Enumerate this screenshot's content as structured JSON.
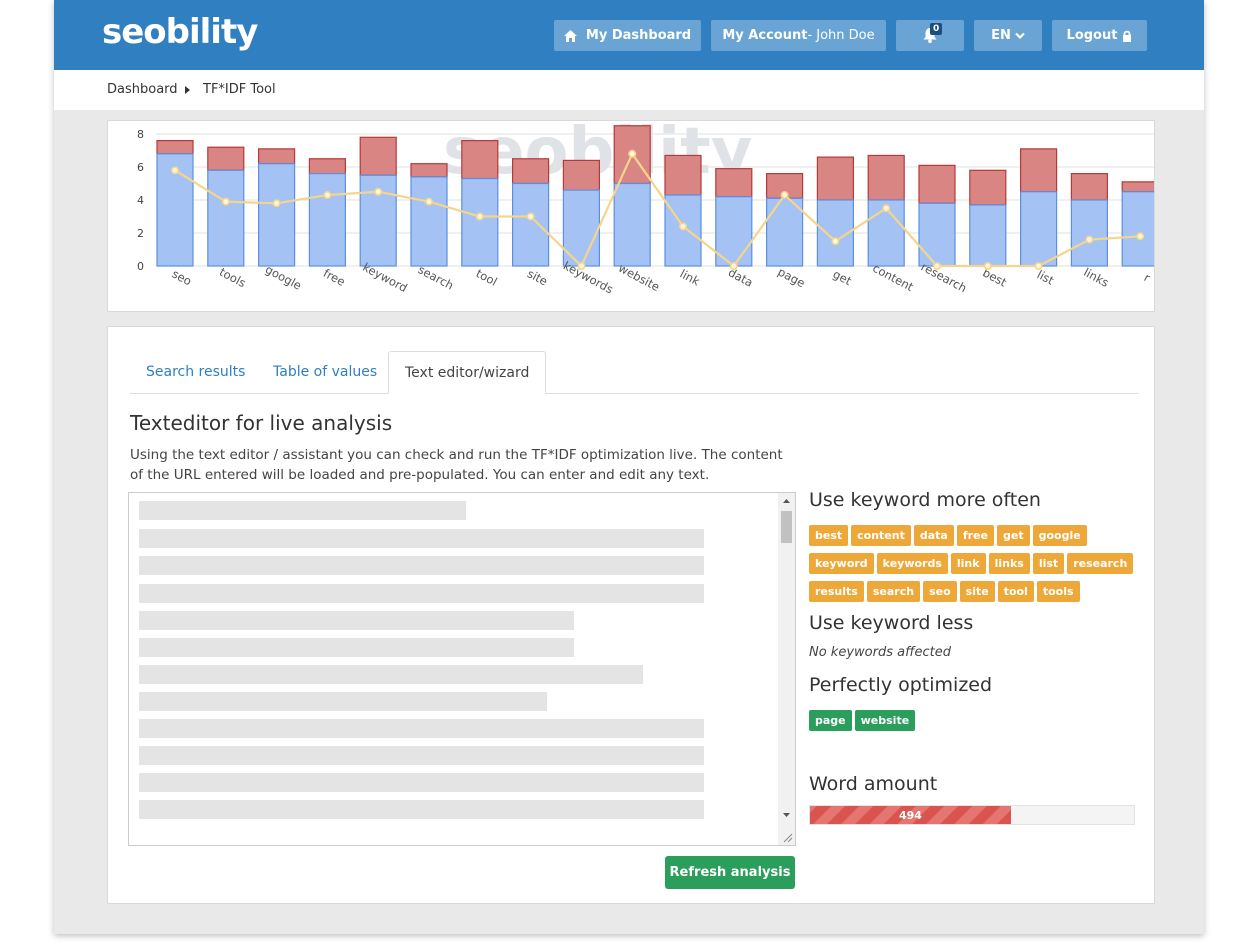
{
  "header": {
    "logo": "seobility",
    "dashboard_label": "My Dashboard",
    "account_label": "My Account",
    "account_user": " - John Doe",
    "notifications_count": "0",
    "language": "EN",
    "logout_label": "Logout"
  },
  "breadcrumb": {
    "items": [
      "Dashboard",
      "TF*IDF Tool"
    ]
  },
  "chart_data": {
    "type": "bar",
    "categories": [
      "seo",
      "tools",
      "google",
      "free",
      "keyword",
      "search",
      "tool",
      "site",
      "keywords",
      "website",
      "link",
      "data",
      "page",
      "get",
      "content",
      "research",
      "best",
      "list",
      "links",
      "r"
    ],
    "series": [
      {
        "values": [
          6.8,
          5.8,
          6.2,
          5.6,
          5.5,
          5.4,
          5.3,
          5.0,
          4.6,
          5.0,
          4.3,
          4.2,
          4.1,
          4.0,
          4.0,
          3.8,
          3.7,
          4.5,
          4.0,
          4.5
        ]
      },
      {
        "values": [
          7.6,
          7.2,
          7.1,
          6.5,
          7.8,
          6.2,
          7.6,
          6.5,
          6.4,
          8.5,
          6.7,
          5.9,
          5.6,
          6.6,
          6.7,
          6.1,
          5.8,
          7.1,
          5.6,
          5.1
        ]
      },
      {
        "values": [
          5.8,
          3.9,
          3.8,
          4.3,
          4.5,
          3.9,
          3.0,
          3.0,
          0.0,
          6.8,
          2.4,
          0.0,
          4.3,
          1.5,
          3.5,
          0.0,
          0.0,
          0.0,
          1.6,
          1.8
        ]
      }
    ],
    "ylim": [
      0,
      8
    ],
    "yticks": [
      "0",
      "2",
      "4",
      "6",
      "8"
    ],
    "colors": {
      "bar_fill": "#a4c2f4",
      "bar_stroke": "#5b8fe0",
      "range_fill": "#d98584",
      "range_stroke": "#b53a3a",
      "line": "#f5d58a"
    }
  },
  "tabs": [
    "Search results",
    "Table of values",
    "Text editor/wizard"
  ],
  "editor": {
    "title": "Texteditor for live analysis",
    "description": "Using the text editor / assistant you can check and run the TF*IDF optimization live. The content of the URL entered will be loaded and pre-populated. You can enter and edit any text.",
    "refresh_label": "Refresh analysis"
  },
  "sidebar": {
    "more_title": "Use keyword more often",
    "more_keywords": [
      "best",
      "content",
      "data",
      "free",
      "get",
      "google",
      "keyword",
      "keywords",
      "link",
      "links",
      "list",
      "research",
      "results",
      "search",
      "seo",
      "site",
      "tool",
      "tools"
    ],
    "less_title": "Use keyword less",
    "less_empty": "No keywords affected",
    "optimized_title": "Perfectly optimized",
    "optimized_keywords": [
      "page",
      "website"
    ],
    "word_title": "Word amount",
    "word_count": "494",
    "word_fraction": 0.62
  }
}
